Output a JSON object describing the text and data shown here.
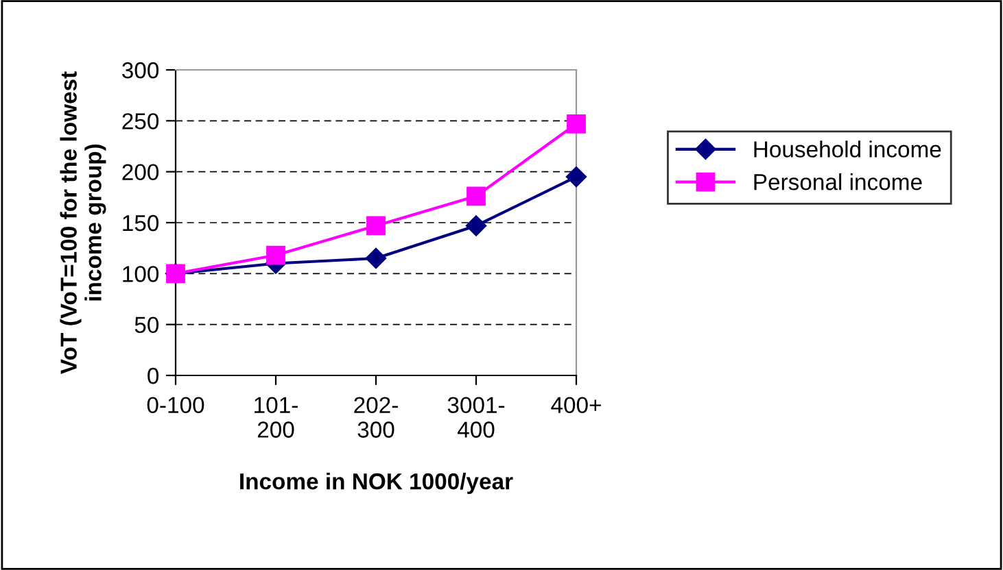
{
  "chart_data": {
    "type": "line",
    "xlabel": "Income in NOK 1000/year",
    "ylabel": "VoT (VoT=100 for the lowest\nincome group)",
    "categories": [
      "0-100",
      "101-\n200",
      "202-\n300",
      "3001-\n400",
      "400+"
    ],
    "series": [
      {
        "name": "Household income",
        "color": "#000080",
        "marker": "diamond",
        "values": [
          100,
          110,
          115,
          147,
          195
        ]
      },
      {
        "name": "Personal income",
        "color": "#ff00ff",
        "marker": "square",
        "values": [
          100,
          118,
          147,
          176,
          247
        ]
      }
    ],
    "ylim": [
      0,
      300
    ],
    "yticks": [
      0,
      50,
      100,
      150,
      200,
      250,
      300
    ],
    "grid": "y",
    "legend": "right",
    "line_style": "solid"
  }
}
